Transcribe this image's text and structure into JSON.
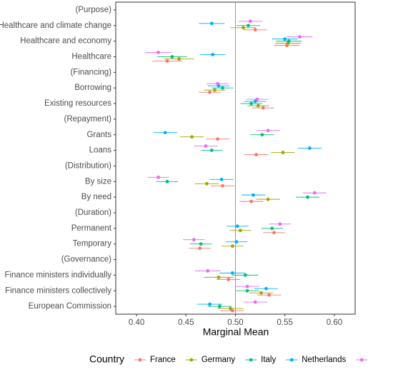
{
  "chart_data": {
    "type": "dotwhisker",
    "x_label": "Marginal Mean",
    "legend_title": "Country",
    "legend_position": "bottom",
    "categories": [
      "(Purpose)",
      "Healthcare and climate change",
      "Healthcare and economy",
      "Healthcare",
      "(Financing)",
      "Borrowing",
      "Existing resources",
      "(Repayment)",
      "Grants",
      "Loans",
      "(Distribution)",
      "By size",
      "By need",
      "(Duration)",
      "Permanent",
      "Temporary",
      "(Governance)",
      "Finance ministers individually",
      "Finance ministers collectively",
      "European Commission"
    ],
    "series": [
      {
        "name": "France",
        "color": "#F8766D",
        "values": [
          null,
          0.52,
          0.552,
          0.431,
          null,
          0.474,
          0.528,
          null,
          0.482,
          0.521,
          null,
          0.487,
          0.516,
          null,
          0.539,
          0.464,
          null,
          0.493,
          0.534,
          0.497
        ],
        "errors": [
          null,
          0.012,
          0.013,
          0.015,
          null,
          0.011,
          0.011,
          null,
          0.012,
          0.012,
          null,
          0.012,
          0.012,
          null,
          0.011,
          0.011,
          null,
          0.012,
          0.012,
          0.012
        ]
      },
      {
        "name": "Germany",
        "color": "#A3A500",
        "values": [
          null,
          0.508,
          0.553,
          0.443,
          null,
          0.479,
          0.523,
          null,
          0.456,
          0.548,
          null,
          0.471,
          0.533,
          null,
          0.505,
          0.497,
          null,
          0.483,
          0.526,
          0.495
        ],
        "errors": [
          null,
          0.013,
          0.013,
          0.015,
          null,
          0.011,
          0.011,
          null,
          0.012,
          0.012,
          null,
          0.012,
          0.012,
          null,
          0.011,
          0.011,
          null,
          0.015,
          0.012,
          0.013
        ]
      },
      {
        "name": "Italy",
        "color": "#00BF7D",
        "values": [
          null,
          0.513,
          0.554,
          0.436,
          null,
          0.487,
          0.516,
          null,
          0.527,
          0.476,
          null,
          0.431,
          0.573,
          null,
          0.537,
          0.465,
          null,
          0.51,
          0.512,
          0.484
        ],
        "errors": [
          null,
          0.012,
          0.013,
          0.015,
          null,
          0.011,
          0.011,
          null,
          0.012,
          0.011,
          null,
          0.011,
          0.012,
          null,
          0.011,
          0.011,
          null,
          0.013,
          0.012,
          0.012
        ]
      },
      {
        "name": "Netherlands",
        "color": "#00B0F6",
        "values": [
          null,
          0.476,
          0.55,
          0.477,
          null,
          0.483,
          0.52,
          null,
          0.429,
          0.575,
          null,
          0.486,
          0.518,
          null,
          0.502,
          0.501,
          null,
          0.497,
          0.531,
          0.474
        ],
        "errors": [
          null,
          0.013,
          0.013,
          0.013,
          null,
          0.011,
          0.011,
          null,
          0.012,
          0.012,
          null,
          0.012,
          0.012,
          null,
          0.011,
          0.011,
          null,
          0.013,
          0.012,
          0.013
        ]
      },
      {
        "name": null,
        "color": "#E76BF3",
        "values": [
          null,
          0.515,
          0.565,
          0.422,
          null,
          0.482,
          0.522,
          null,
          0.533,
          0.47,
          null,
          0.422,
          0.58,
          null,
          0.545,
          0.458,
          null,
          0.472,
          0.512,
          0.52
        ],
        "errors": [
          null,
          0.012,
          0.013,
          0.013,
          null,
          0.011,
          0.011,
          null,
          0.012,
          0.012,
          null,
          0.011,
          0.012,
          null,
          0.011,
          0.011,
          null,
          0.013,
          0.012,
          0.012
        ]
      }
    ],
    "xlim": [
      0.379,
      0.621
    ],
    "xticks": [
      {
        "value": 0.4,
        "label": "0.40"
      },
      0.45,
      {
        "value": 0.5,
        "label": "0.50"
      },
      0.55,
      {
        "value": 0.6,
        "label": "0.60"
      }
    ],
    "reference_line": 0.5,
    "grid": false
  }
}
